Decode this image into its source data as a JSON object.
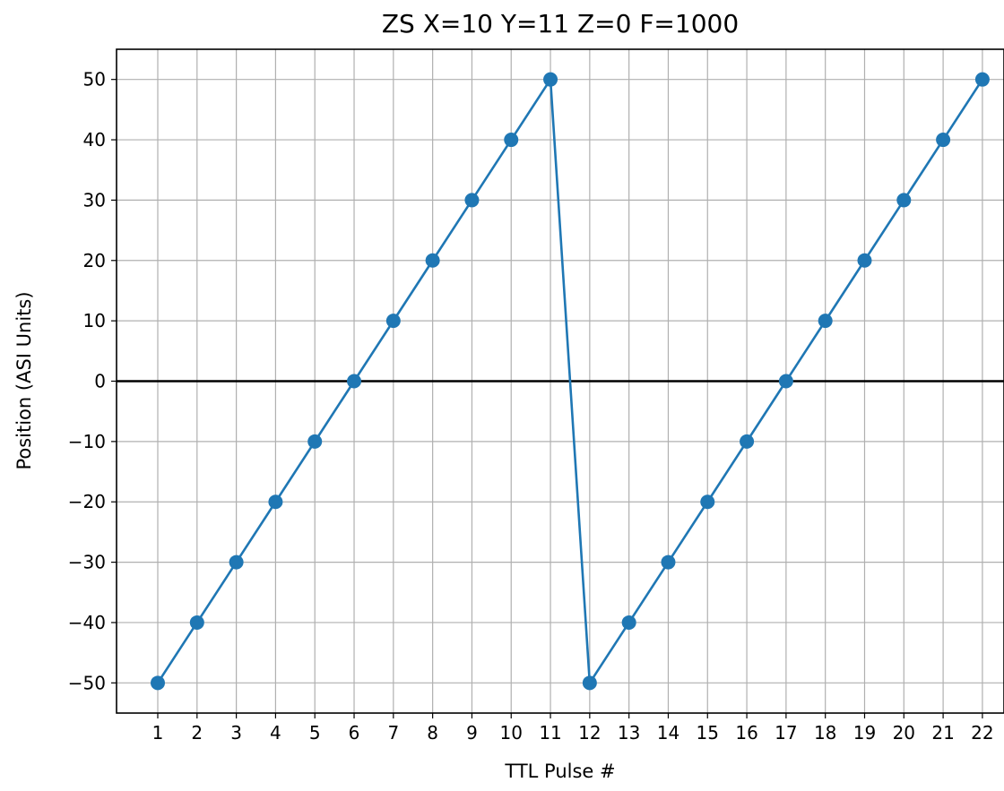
{
  "chart_data": {
    "type": "line",
    "title": "ZS X=10 Y=11 Z=0 F=1000",
    "xlabel": "TTL Pulse #",
    "ylabel": "Position (ASI Units)",
    "x_ticks": [
      1,
      2,
      3,
      4,
      5,
      6,
      7,
      8,
      9,
      10,
      11,
      12,
      13,
      14,
      15,
      16,
      17,
      18,
      19,
      20,
      21,
      22
    ],
    "y_ticks": [
      -50,
      -40,
      -30,
      -20,
      -10,
      0,
      10,
      20,
      30,
      40,
      50
    ],
    "xlim": [
      -0.05,
      22.55
    ],
    "ylim": [
      -55,
      55
    ],
    "grid": true,
    "reference_line_y": 0,
    "series": [
      {
        "x": [
          1,
          2,
          3,
          4,
          5,
          6,
          7,
          8,
          9,
          10,
          11,
          12,
          13,
          14,
          15,
          16,
          17,
          18,
          19,
          20,
          21,
          22
        ],
        "y": [
          -50,
          -40,
          -30,
          -20,
          -10,
          0,
          10,
          20,
          30,
          40,
          50,
          -50,
          -40,
          -30,
          -20,
          -10,
          0,
          10,
          20,
          30,
          40,
          50
        ]
      }
    ],
    "colors": {
      "series": "#1f77b4",
      "grid": "#b0b0b0",
      "reference_line": "#000000"
    }
  }
}
